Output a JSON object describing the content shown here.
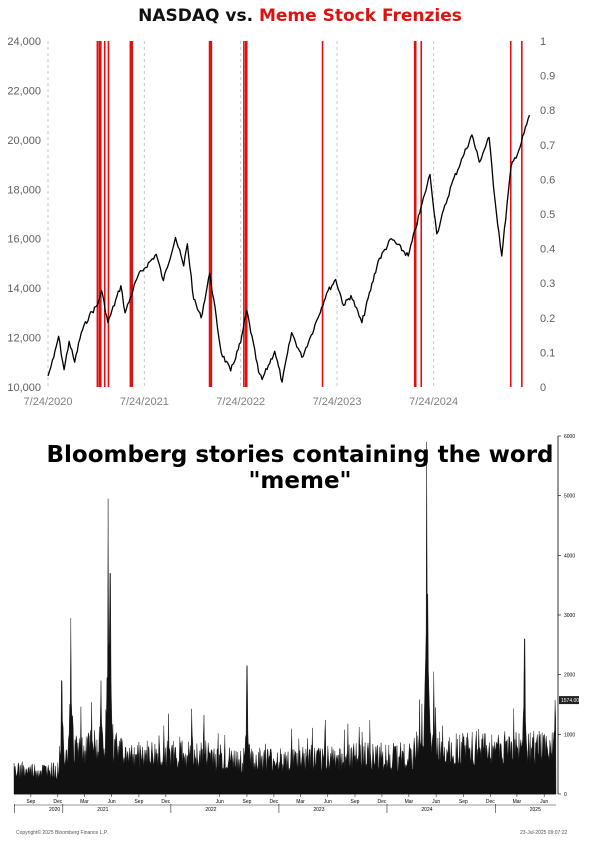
{
  "top_chart": {
    "title_part1": "NASDAQ vs.",
    "title_part2": "Meme Stock Frenzies",
    "title_color_highlight": "#e01010"
  },
  "bottom_chart": {
    "title": "Bloomberg stories containing the word \"meme\"",
    "current_value_label": "1574.00",
    "copyright": "Copyright© 2025 Bloomberg Finance L.P.",
    "timestamp": "23-Jul-2025 09:07:22"
  },
  "chart_data": [
    {
      "type": "line",
      "title": "NASDAQ vs. Meme Stock Frenzies",
      "x_tick_labels": [
        "7/24/2020",
        "7/24/2021",
        "7/24/2022",
        "7/24/2023",
        "7/24/2024"
      ],
      "y_left_ticks": [
        "10,000",
        "12,000",
        "14,000",
        "16,000",
        "18,000",
        "20,000",
        "22,000",
        "24,000"
      ],
      "y_right_ticks": [
        "0",
        "0.1",
        "0.2",
        "0.3",
        "0.4",
        "0.5",
        "0.6",
        "0.7",
        "0.8",
        "0.9",
        "1"
      ],
      "ylim_left": [
        10000,
        24000
      ],
      "ylim_right": [
        0,
        1
      ],
      "xlim": [
        "2020-07-24",
        "2025-07-24"
      ],
      "grid": "vertical dashed at x ticks",
      "series": [
        {
          "color": "#000000",
          "points": [
            [
              "2020-07-24",
              10450
            ],
            [
              "2020-08-15",
              11200
            ],
            [
              "2020-09-02",
              12050
            ],
            [
              "2020-09-23",
              10700
            ],
            [
              "2020-10-12",
              11850
            ],
            [
              "2020-11-02",
              11000
            ],
            [
              "2020-11-27",
              12200
            ],
            [
              "2020-12-28",
              12900
            ],
            [
              "2021-01-26",
              13300
            ],
            [
              "2021-02-12",
              13900
            ],
            [
              "2021-03-08",
              12600
            ],
            [
              "2021-04-26",
              14100
            ],
            [
              "2021-05-12",
              13000
            ],
            [
              "2021-06-30",
              14500
            ],
            [
              "2021-07-24",
              14800
            ],
            [
              "2021-09-07",
              15370
            ],
            [
              "2021-10-04",
              14300
            ],
            [
              "2021-11-19",
              16050
            ],
            [
              "2021-12-20",
              14900
            ],
            [
              "2022-01-03",
              15800
            ],
            [
              "2022-01-27",
              13550
            ],
            [
              "2022-02-24",
              12800
            ],
            [
              "2022-03-29",
              14600
            ],
            [
              "2022-05-11",
              11400
            ],
            [
              "2022-06-16",
              10650
            ],
            [
              "2022-07-24",
              11800
            ],
            [
              "2022-08-16",
              13100
            ],
            [
              "2022-09-30",
              10600
            ],
            [
              "2022-10-13",
              10300
            ],
            [
              "2022-11-30",
              11450
            ],
            [
              "2022-12-28",
              10200
            ],
            [
              "2023-02-02",
              12200
            ],
            [
              "2023-03-13",
              11200
            ],
            [
              "2023-04-17",
              12100
            ],
            [
              "2023-06-15",
              13800
            ],
            [
              "2023-07-19",
              14350
            ],
            [
              "2023-08-18",
              13300
            ],
            [
              "2023-09-15",
              13700
            ],
            [
              "2023-10-26",
              12600
            ],
            [
              "2023-12-27",
              15100
            ],
            [
              "2024-02-15",
              16000
            ],
            [
              "2024-04-19",
              15300
            ],
            [
              "2024-06-20",
              17800
            ],
            [
              "2024-07-10",
              18600
            ],
            [
              "2024-08-05",
              16200
            ],
            [
              "2024-09-30",
              18200
            ],
            [
              "2024-11-11",
              19300
            ],
            [
              "2024-12-16",
              20200
            ],
            [
              "2025-01-13",
              19100
            ],
            [
              "2025-02-19",
              20100
            ],
            [
              "2025-03-13",
              17600
            ],
            [
              "2025-04-08",
              15300
            ],
            [
              "2025-05-13",
              18900
            ],
            [
              "2025-06-16",
              19700
            ],
            [
              "2025-07-22",
              21000
            ]
          ]
        }
      ],
      "event_lines_color": "#e01010",
      "event_lines_right_axis_value": 1,
      "event_lines": [
        "2021-01-27",
        "2021-02-03",
        "2021-02-05",
        "2021-02-09",
        "2021-02-24",
        "2021-03-10",
        "2021-06-01",
        "2021-06-04",
        "2021-06-08",
        "2022-03-28",
        "2022-03-31",
        "2022-04-04",
        "2022-08-05",
        "2022-08-12",
        "2022-08-16",
        "2023-05-30",
        "2024-05-13",
        "2024-05-17",
        "2024-06-07",
        "2025-05-12",
        "2025-06-23"
      ]
    },
    {
      "type": "bar",
      "title": "Bloomberg stories containing the word \"meme\"",
      "x_month_labels": [
        "Sep",
        "Dec",
        "Mar",
        "Jun",
        "Sep",
        "Dec",
        "Jun",
        "Sep",
        "Dec",
        "Mar",
        "Jun",
        "Sep",
        "Dec",
        "Mar",
        "Jun",
        "Sep",
        "Dec",
        "Mar",
        "Jun"
      ],
      "x_year_labels": [
        "2020",
        "2021",
        "2022",
        "2023",
        "2024",
        "2025"
      ],
      "y_right_ticks": [
        "0",
        "1000",
        "2000",
        "3000",
        "4000",
        "5000",
        "6000"
      ],
      "ylim": [
        0,
        6000
      ],
      "baseline_level_approx": 500,
      "peaks": [
        {
          "date": "2020-12-28",
          "value": 1900
        },
        {
          "date": "2021-01-28",
          "value": 2950
        },
        {
          "date": "2021-05-10",
          "value": 1900
        },
        {
          "date": "2021-06-03",
          "value": 4950
        },
        {
          "date": "2021-06-10",
          "value": 3700
        },
        {
          "date": "2022-09-15",
          "value": 2150
        },
        {
          "date": "2024-05-14",
          "value": 5900
        },
        {
          "date": "2024-05-17",
          "value": 3350
        },
        {
          "date": "2024-06-07",
          "value": 2050
        },
        {
          "date": "2025-04-10",
          "value": 2600
        },
        {
          "date": "2025-07-22",
          "value": 1574
        }
      ],
      "last_value": 1574
    }
  ]
}
